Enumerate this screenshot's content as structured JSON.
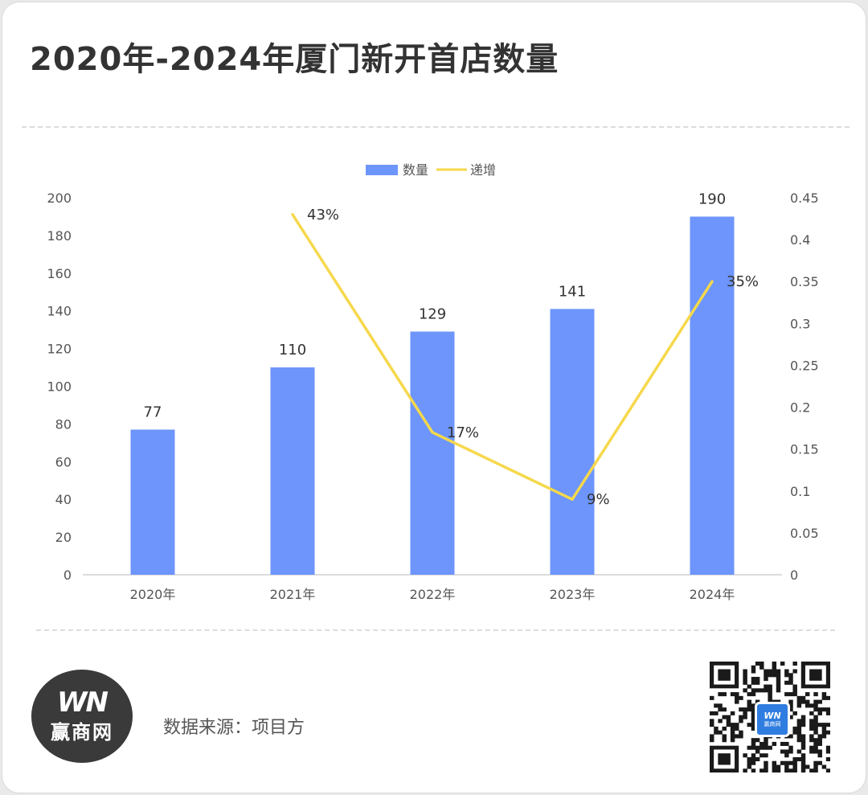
{
  "title": "2020年-2024年厦门新开首店数量",
  "source": "数据来源：项目方",
  "logo": {
    "mark": "WN",
    "name": "赢商网"
  },
  "qr_badge": {
    "mark": "WN",
    "name": "赢商网"
  },
  "colors": {
    "bar": "#6d95fb",
    "line": "#f6d84c",
    "axis": "#d0d0d0",
    "text": "#333333",
    "tick": "#555555"
  },
  "chart_data": {
    "type": "bar",
    "categories": [
      "2020年",
      "2021年",
      "2022年",
      "2023年",
      "2024年"
    ],
    "series": [
      {
        "name": "数量",
        "type": "bar",
        "axis": "left",
        "values": [
          77,
          110,
          129,
          141,
          190
        ],
        "labels": [
          "77",
          "110",
          "129",
          "141",
          "190"
        ]
      },
      {
        "name": "递增",
        "type": "line",
        "axis": "right",
        "values": [
          null,
          0.43,
          0.17,
          0.09,
          0.35
        ],
        "labels": [
          "",
          "43%",
          "17%",
          "9%",
          "35%"
        ]
      }
    ],
    "y_left": {
      "min": 0,
      "max": 200,
      "ticks": [
        "0",
        "20",
        "40",
        "60",
        "80",
        "100",
        "120",
        "140",
        "160",
        "180",
        "200"
      ]
    },
    "y_right": {
      "min": 0,
      "max": 0.45,
      "ticks": [
        "0",
        "0.05",
        "0.1",
        "0.15",
        "0.2",
        "0.25",
        "0.3",
        "0.35",
        "0.4",
        "0.45"
      ]
    },
    "legend_position": "top-center",
    "grid": false
  }
}
